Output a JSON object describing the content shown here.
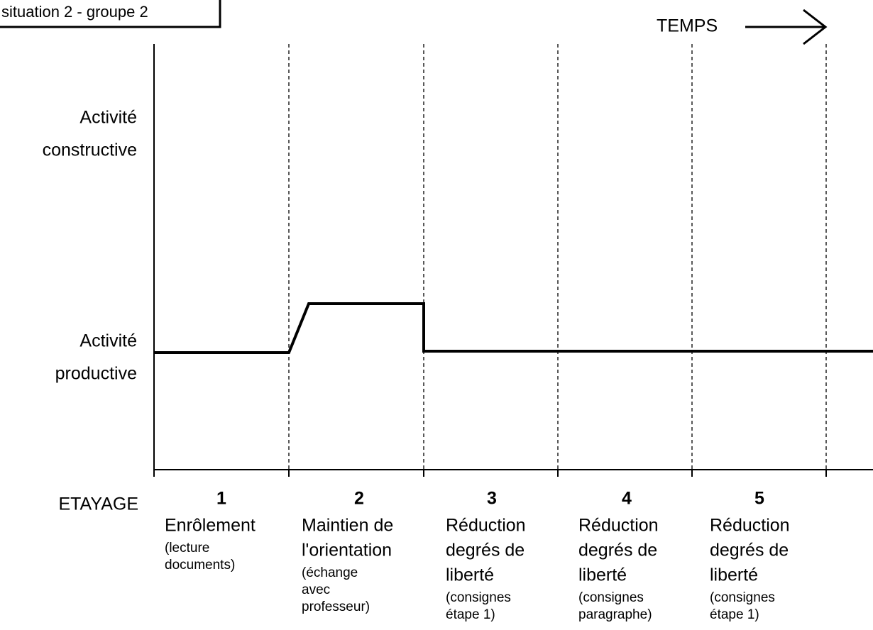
{
  "header": {
    "title": "situation 2 - groupe 2",
    "time_label": "TEMPS"
  },
  "y_levels": [
    {
      "lines": [
        "Activité",
        "constructive"
      ]
    },
    {
      "lines": [
        "Activité",
        "productive"
      ]
    }
  ],
  "row_label": "ETAYAGE",
  "columns": [
    {
      "number": "1",
      "title": [
        "Enrôlement"
      ],
      "detail": [
        "(lecture",
        "documents)"
      ]
    },
    {
      "number": "2",
      "title": [
        "Maintien de",
        "l'orientation"
      ],
      "detail": [
        "(échange",
        "avec",
        "professeur)"
      ]
    },
    {
      "number": "3",
      "title": [
        "Réduction",
        "degrés de",
        "liberté"
      ],
      "detail": [
        "(consignes",
        "étape 1)"
      ]
    },
    {
      "number": "4",
      "title": [
        "Réduction",
        "degrés de",
        "liberté"
      ],
      "detail": [
        "(consignes",
        "paragraphe)"
      ]
    },
    {
      "number": "5",
      "title": [
        "Réduction",
        "degrés de",
        "liberté"
      ],
      "detail": [
        "(consignes",
        "étape 1)"
      ]
    }
  ]
}
